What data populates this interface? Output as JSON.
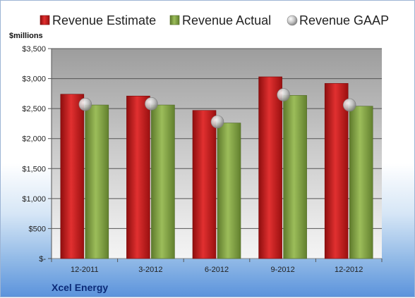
{
  "chart_data": {
    "type": "bar",
    "categories": [
      "12-2011",
      "3-2012",
      "6-2012",
      "9-2012",
      "12-2012"
    ],
    "series": [
      {
        "name": "Revenue Estimate",
        "color": "#cc1f1f",
        "marker": "bar",
        "values": [
          2740,
          2710,
          2470,
          3030,
          2920
        ]
      },
      {
        "name": "Revenue Actual",
        "color": "#8cab4a",
        "marker": "bar",
        "values": [
          2560,
          2560,
          2260,
          2720,
          2540
        ]
      },
      {
        "name": "Revenue GAAP",
        "color": "#b8b8b8",
        "marker": "circle",
        "values": [
          2570,
          2580,
          2280,
          2730,
          2560
        ]
      }
    ],
    "ylabel": "$millions",
    "ylim": [
      0,
      3500
    ],
    "yticks": [
      0,
      500,
      1000,
      1500,
      2000,
      2500,
      3000,
      3500
    ],
    "ytick_labels": [
      "$-",
      "$500",
      "$1,000",
      "$1,500",
      "$2,000",
      "$2,500",
      "$3,000",
      "$3,500"
    ],
    "grid": true,
    "legend_position": "top"
  },
  "footer": {
    "company": "Xcel Energy"
  }
}
